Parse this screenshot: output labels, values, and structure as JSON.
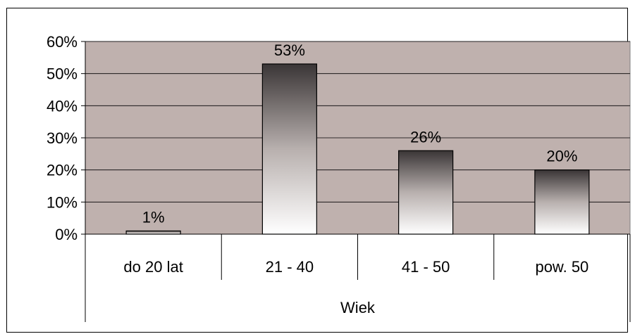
{
  "chart_data": {
    "type": "bar",
    "categories": [
      "do 20 lat",
      "21 - 40",
      "41 - 50",
      "pow. 50"
    ],
    "values": [
      1,
      53,
      26,
      20
    ],
    "data_labels": [
      "1%",
      "53%",
      "26%",
      "20%"
    ],
    "y_tick_labels": [
      "0%",
      "10%",
      "20%",
      "30%",
      "40%",
      "50%",
      "60%"
    ],
    "y_ticks": [
      0,
      10,
      20,
      30,
      40,
      50,
      60
    ],
    "ylim": [
      0,
      60
    ],
    "xlabel": "Wiek",
    "ylabel": "",
    "title": "",
    "grid": true,
    "legend": false,
    "colors": {
      "plot_background": "#bfb1ae",
      "bar_gradient_top": "#3a3536",
      "bar_gradient_mid": "#b8b0ae",
      "bar_gradient_bottom": "#ffffff",
      "axis": "#000000",
      "gridline": "#000000"
    }
  }
}
